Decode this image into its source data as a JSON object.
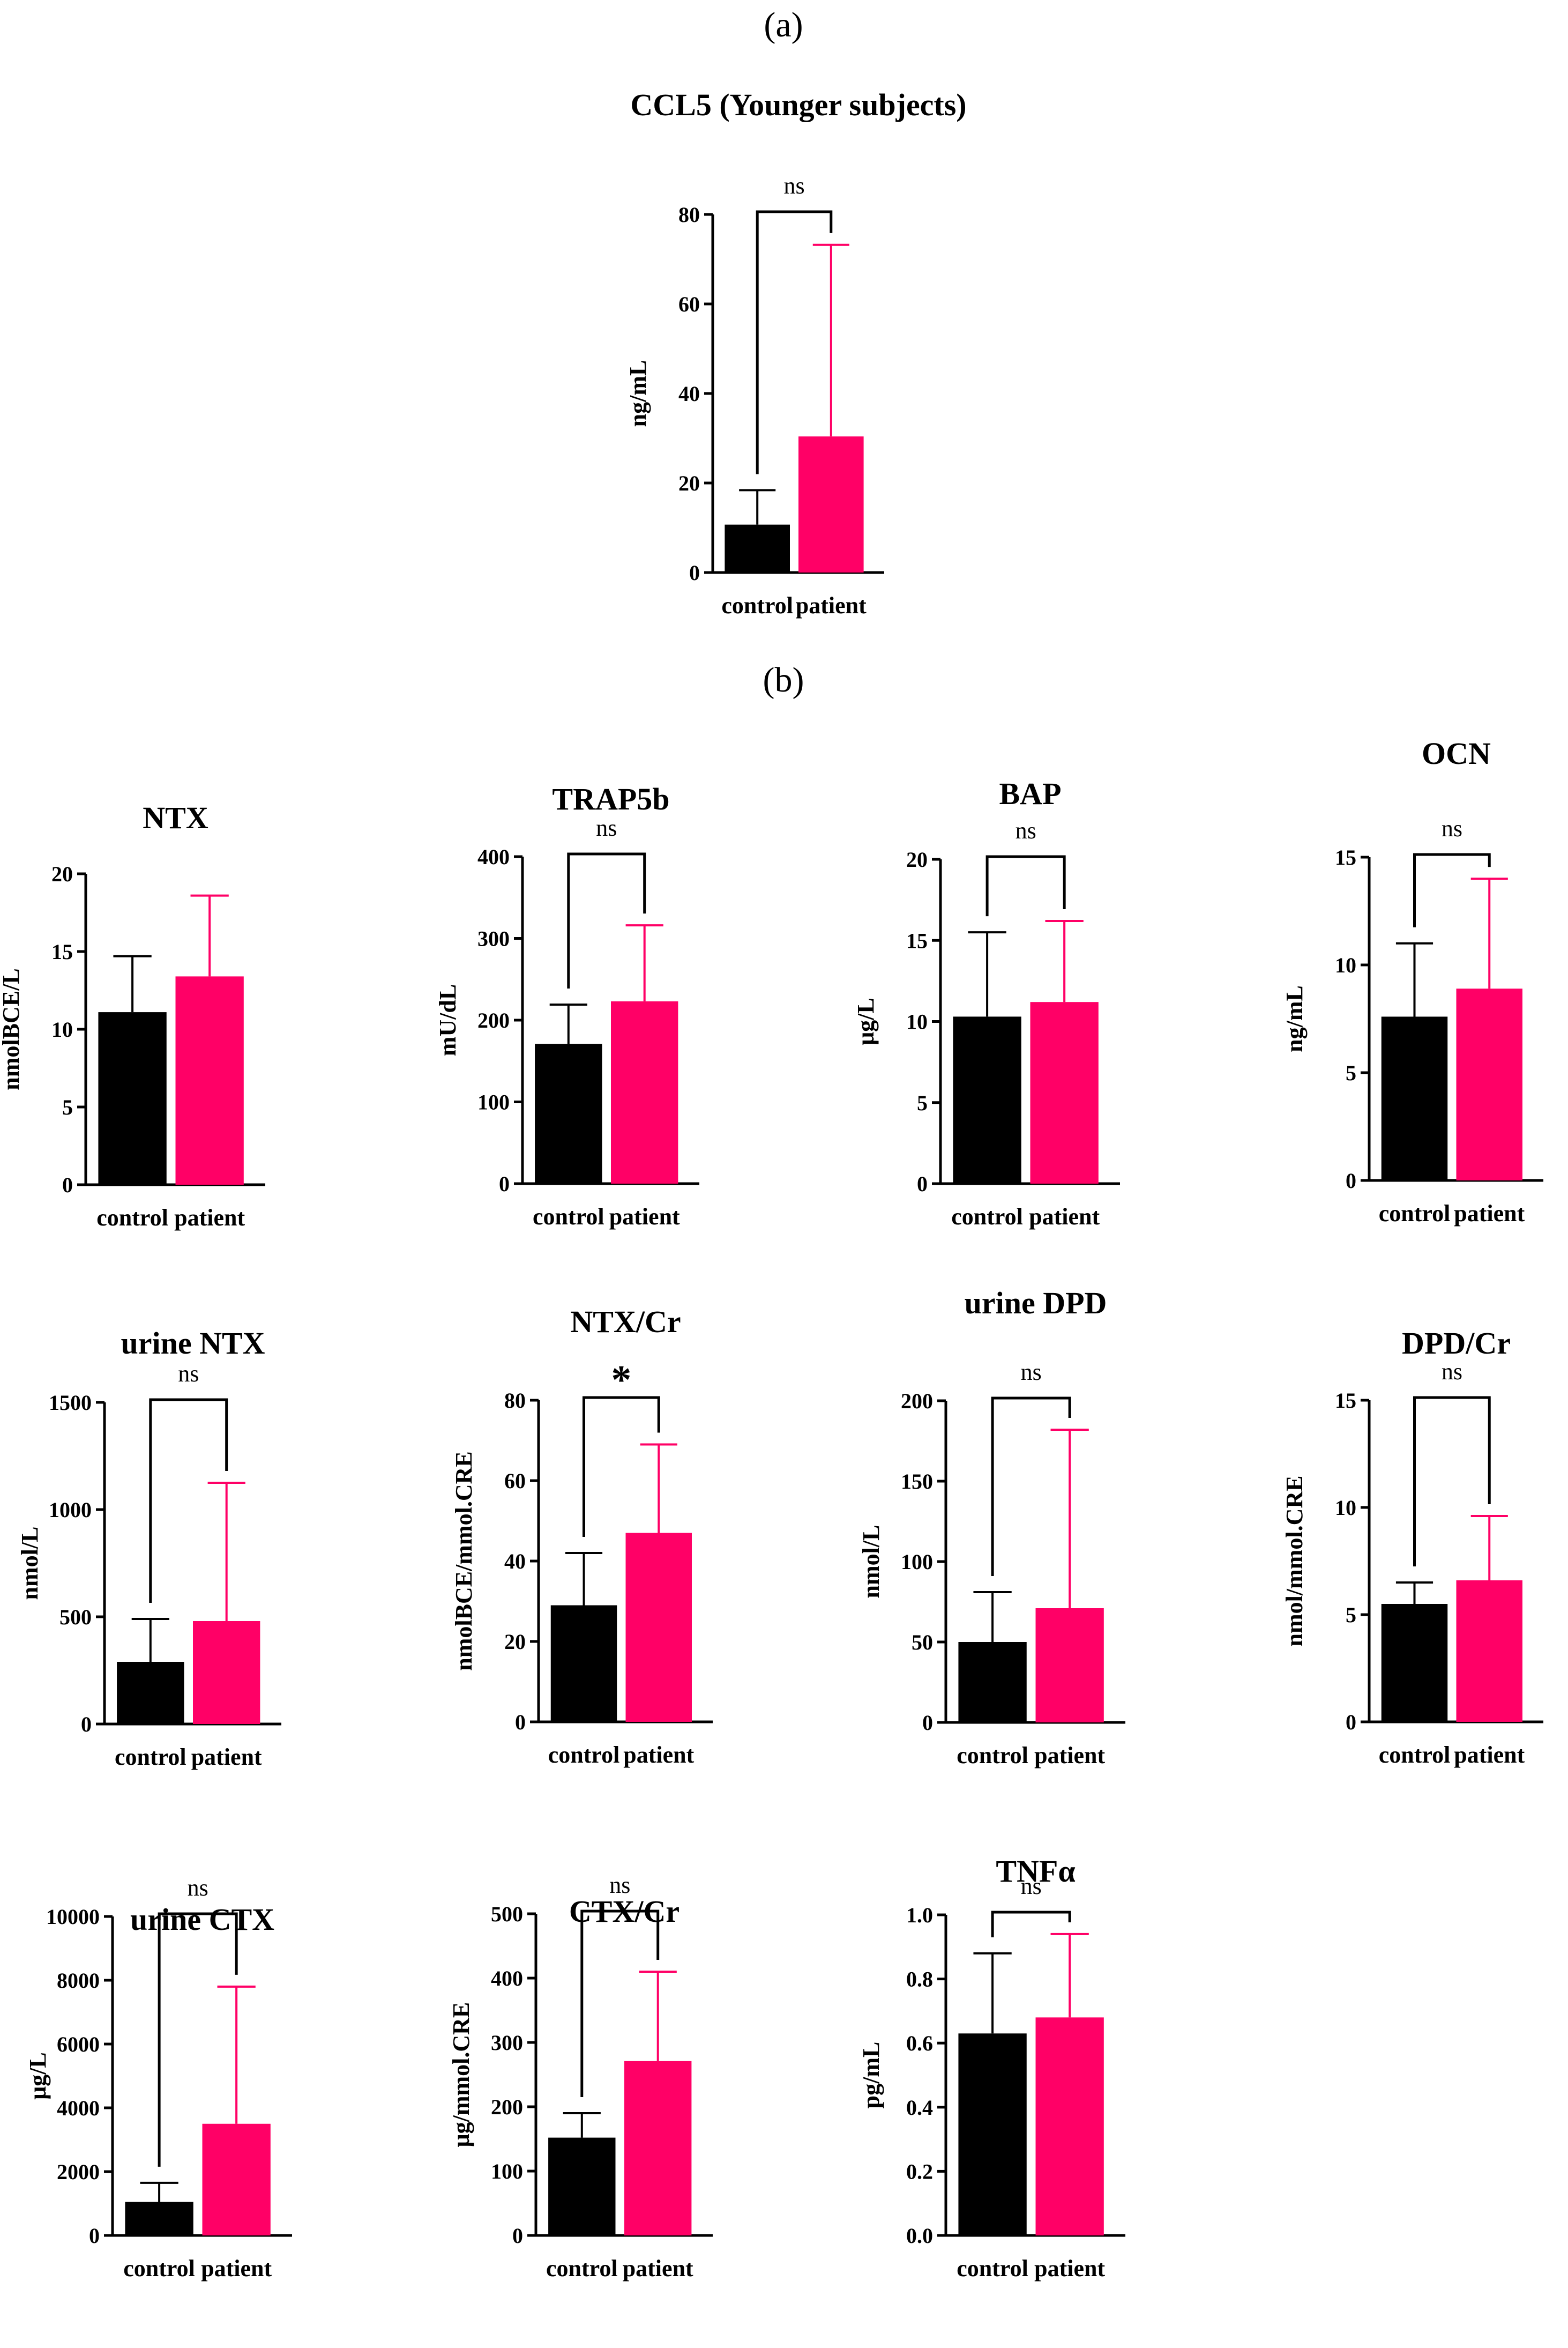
{
  "panel_labels": {
    "a": "(a)",
    "b": "(b)"
  },
  "colors": {
    "control": "#000000",
    "patient": "#ff0066",
    "axis": "#000000"
  },
  "chart_data": [
    {
      "type": "bar",
      "title": "CCL5 (Younger subjects)",
      "ylabel": "ng/mL",
      "categories": [
        "control",
        "patient"
      ],
      "values": [
        10.7,
        30.4
      ],
      "errors": [
        18.4,
        73.2
      ],
      "ylim": [
        0,
        80
      ],
      "yticks": [
        0,
        20,
        40,
        60,
        80
      ],
      "significance": "ns"
    },
    {
      "type": "bar",
      "title": "NTX",
      "ylabel": "nmolBCE/L",
      "categories": [
        "control",
        "patient"
      ],
      "values": [
        11.1,
        13.4
      ],
      "errors": [
        14.7,
        18.6
      ],
      "ylim": [
        0,
        20
      ],
      "yticks": [
        0,
        5,
        10,
        15,
        20
      ],
      "significance": ""
    },
    {
      "type": "bar",
      "title": "TRAP5b",
      "ylabel": "mU/dL",
      "categories": [
        "control",
        "patient"
      ],
      "values": [
        171,
        223
      ],
      "errors": [
        219,
        316
      ],
      "ylim": [
        0,
        400
      ],
      "yticks": [
        0,
        100,
        200,
        300,
        400
      ],
      "significance": "ns"
    },
    {
      "type": "bar",
      "title": "BAP",
      "ylabel": "μg/L",
      "categories": [
        "control",
        "patient"
      ],
      "values": [
        10.3,
        11.2
      ],
      "errors": [
        15.5,
        16.2
      ],
      "ylim": [
        0,
        20
      ],
      "yticks": [
        0,
        5,
        10,
        15,
        20
      ],
      "significance": "ns"
    },
    {
      "type": "bar",
      "title": "OCN",
      "ylabel": "ng/mL",
      "categories": [
        "control",
        "patient"
      ],
      "values": [
        7.6,
        8.9
      ],
      "errors": [
        11.0,
        14.0
      ],
      "ylim": [
        0,
        15
      ],
      "yticks": [
        0,
        5,
        10,
        15
      ],
      "significance": "ns"
    },
    {
      "type": "bar",
      "title": "urine NTX",
      "ylabel": "nmol/L",
      "categories": [
        "control",
        "patient"
      ],
      "values": [
        290,
        480
      ],
      "errors": [
        490,
        1125
      ],
      "ylim": [
        0,
        1500
      ],
      "yticks": [
        0,
        500,
        1000,
        1500
      ],
      "significance": "ns"
    },
    {
      "type": "bar",
      "title": "NTX/Cr",
      "ylabel": "nmolBCE/mmol.CRE",
      "categories": [
        "control",
        "patient"
      ],
      "values": [
        29,
        47
      ],
      "errors": [
        42,
        69
      ],
      "ylim": [
        0,
        80
      ],
      "yticks": [
        0,
        20,
        40,
        60,
        80
      ],
      "significance": "*"
    },
    {
      "type": "bar",
      "title": "urine DPD",
      "ylabel": "nmol/L",
      "categories": [
        "control",
        "patient"
      ],
      "values": [
        50,
        71
      ],
      "errors": [
        81,
        182
      ],
      "ylim": [
        0,
        200
      ],
      "yticks": [
        0,
        50,
        100,
        150,
        200
      ],
      "significance": "ns"
    },
    {
      "type": "bar",
      "title": "DPD/Cr",
      "ylabel": "nmol/mmol.CRE",
      "categories": [
        "control",
        "patient"
      ],
      "values": [
        5.5,
        6.6
      ],
      "errors": [
        6.5,
        9.6
      ],
      "ylim": [
        0,
        15
      ],
      "yticks": [
        0,
        5,
        10,
        15
      ],
      "significance": "ns"
    },
    {
      "type": "bar",
      "title": "urine CTX",
      "ylabel": "μg/L",
      "categories": [
        "control",
        "patient"
      ],
      "values": [
        1050,
        3500
      ],
      "errors": [
        1650,
        7800
      ],
      "ylim": [
        0,
        10000
      ],
      "yticks": [
        0,
        2000,
        4000,
        6000,
        8000,
        10000
      ],
      "significance": "ns"
    },
    {
      "type": "bar",
      "title": "CTX/Cr",
      "ylabel": "μg/mmol.CRE",
      "categories": [
        "control",
        "patient"
      ],
      "values": [
        152,
        271
      ],
      "errors": [
        190,
        410
      ],
      "ylim": [
        0,
        500
      ],
      "yticks": [
        0,
        100,
        200,
        300,
        400,
        500
      ],
      "significance": "ns"
    },
    {
      "type": "bar",
      "title": "TNFα",
      "ylabel": "pg/mL",
      "categories": [
        "control",
        "patient"
      ],
      "values": [
        0.63,
        0.68
      ],
      "errors": [
        0.88,
        0.94
      ],
      "ylim": [
        0,
        1.0
      ],
      "yticks": [
        "0.0",
        "0.2",
        "0.4",
        "0.6",
        "0.8",
        "1.0"
      ],
      "significance": "ns"
    }
  ]
}
